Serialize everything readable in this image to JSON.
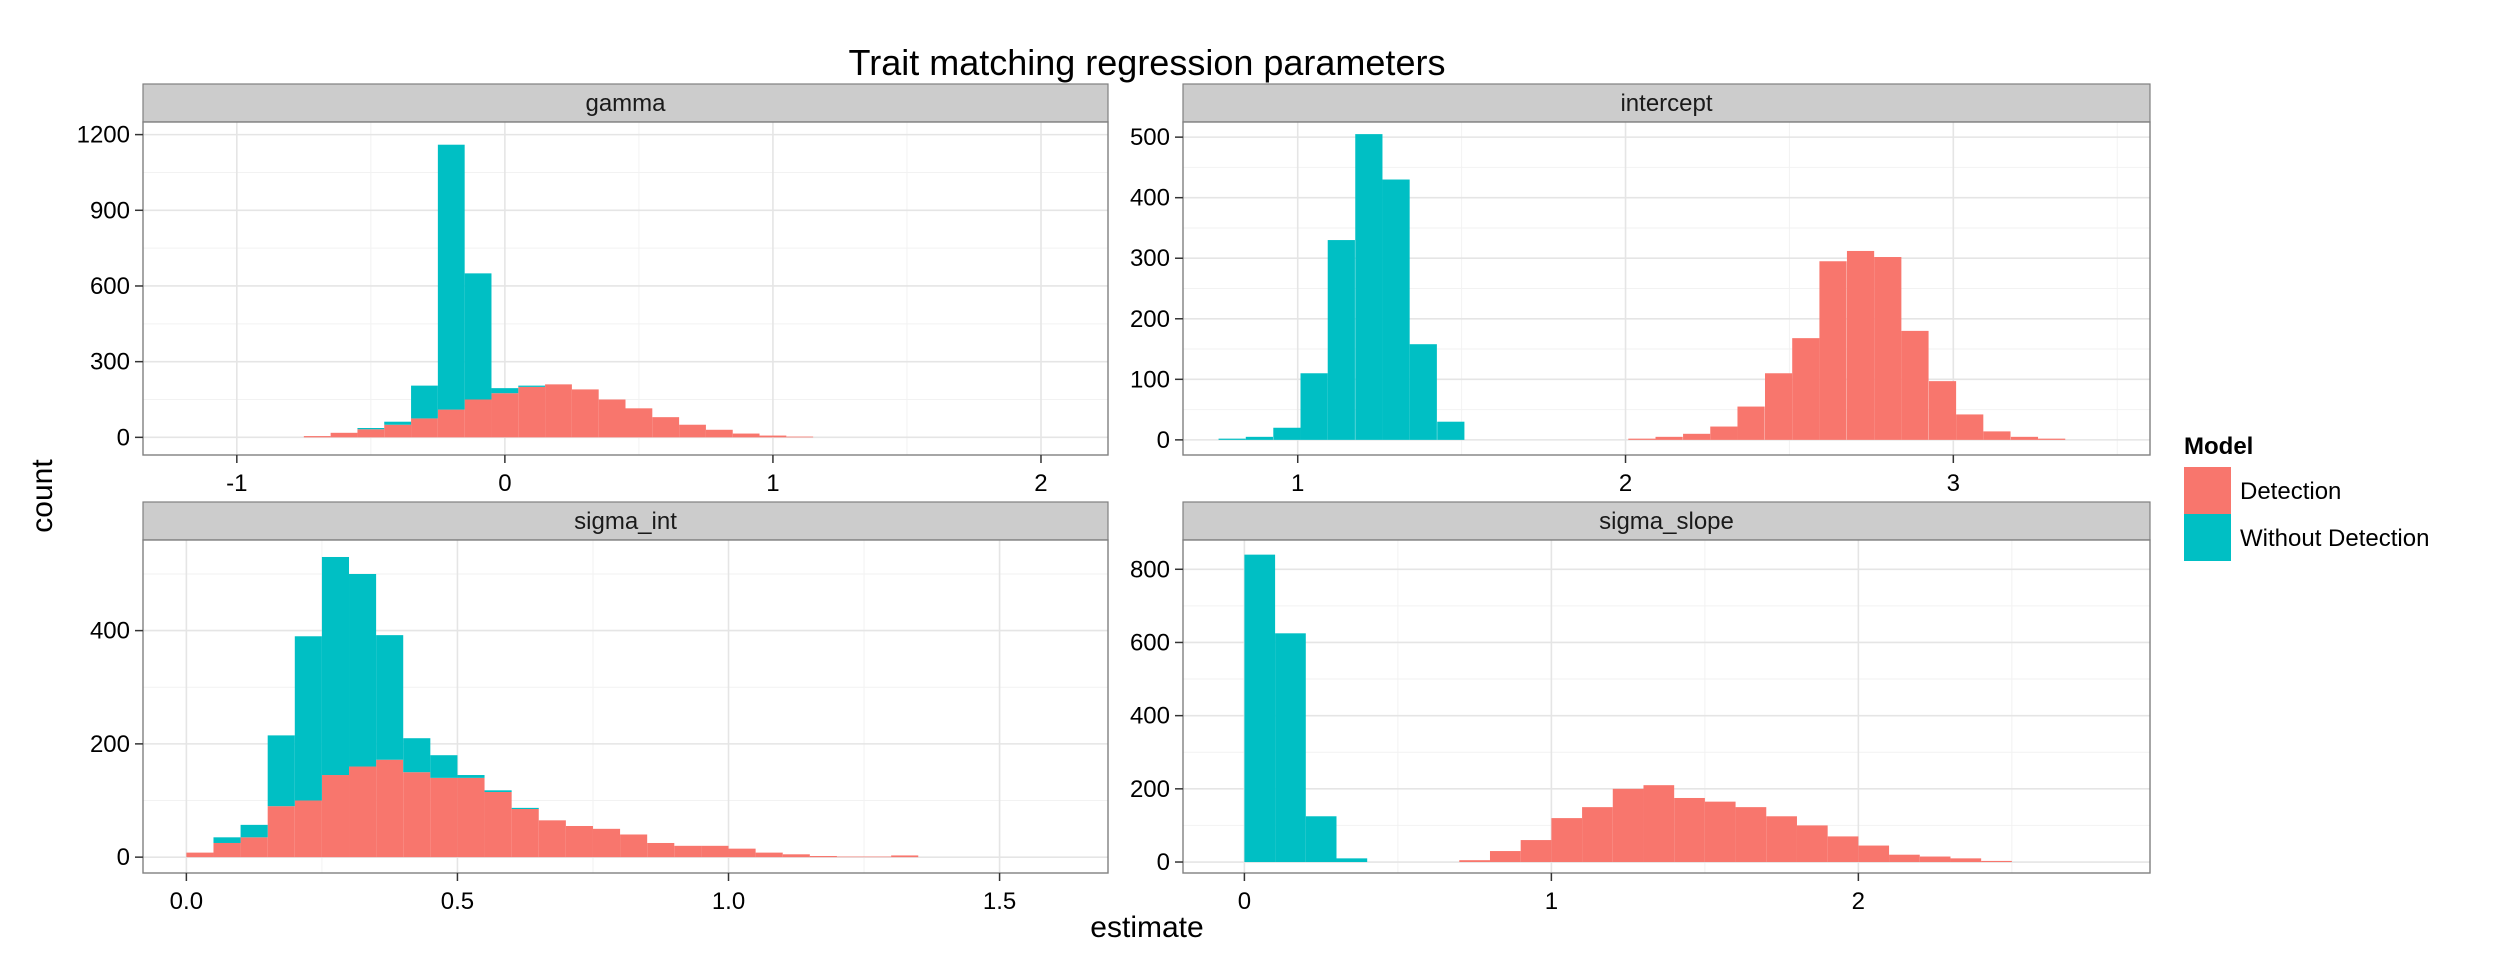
{
  "chart_data": {
    "type": "bar",
    "title": "Trait matching regression parameters",
    "xlabel": "estimate",
    "ylabel": "count",
    "legend": {
      "title": "Model",
      "position": "right",
      "entries": [
        {
          "name": "Detection",
          "color": "#F8766D"
        },
        {
          "name": "Without Detection",
          "color": "#00BFC4"
        }
      ]
    },
    "grid": true,
    "bar_stacking": "stacked",
    "panels": [
      {
        "name": "gamma",
        "xlim": [
          -1.35,
          2.25
        ],
        "ylim": [
          -70,
          1250
        ],
        "xticks": [
          -1,
          0,
          1,
          2
        ],
        "xtick_labels": [
          "-1",
          "0",
          "1",
          "2"
        ],
        "yticks": [
          0,
          300,
          600,
          900,
          1200
        ],
        "ytick_labels": [
          "0",
          "300",
          "600",
          "900",
          "1200"
        ],
        "binwidth": 0.1,
        "series": [
          {
            "name": "Detection",
            "color": "#F8766D",
            "x": [
              -0.7,
              -0.6,
              -0.5,
              -0.4,
              -0.3,
              -0.2,
              -0.1,
              0.0,
              0.1,
              0.2,
              0.3,
              0.4,
              0.5,
              0.6,
              0.7,
              0.8,
              0.9,
              1.0,
              1.1
            ],
            "values": [
              5,
              18,
              32,
              50,
              75,
              110,
              150,
              175,
              200,
              210,
              190,
              150,
              115,
              80,
              50,
              30,
              15,
              7,
              3
            ]
          },
          {
            "name": "Without Detection",
            "color": "#00BFC4",
            "x": [
              -0.5,
              -0.4,
              -0.3,
              -0.2,
              -0.1,
              0.0,
              0.1
            ],
            "values": [
              5,
              12,
              130,
              1050,
              500,
              20,
              5
            ]
          }
        ]
      },
      {
        "name": "intercept",
        "xlim": [
          0.65,
          3.6
        ],
        "ylim": [
          -25,
          525
        ],
        "xticks": [
          1,
          2,
          3
        ],
        "xtick_labels": [
          "1",
          "2",
          "3"
        ],
        "yticks": [
          0,
          100,
          200,
          300,
          400,
          500
        ],
        "ytick_labels": [
          "0",
          "100",
          "200",
          "300",
          "400",
          "500"
        ],
        "binwidth": 0.083,
        "series": [
          {
            "name": "Detection",
            "color": "#F8766D",
            "x": [
              2.05,
              2.133,
              2.217,
              2.3,
              2.383,
              2.467,
              2.55,
              2.633,
              2.717,
              2.8,
              2.883,
              2.967,
              3.05,
              3.133,
              3.217,
              3.3
            ],
            "values": [
              2,
              5,
              10,
              22,
              55,
              110,
              168,
              295,
              312,
              302,
              180,
              97,
              42,
              14,
              5,
              2
            ]
          },
          {
            "name": "Without Detection",
            "color": "#00BFC4",
            "x": [
              0.8,
              0.883,
              0.967,
              1.05,
              1.133,
              1.217,
              1.3,
              1.383,
              1.467
            ],
            "values": [
              2,
              5,
              20,
              110,
              330,
              505,
              430,
              158,
              30
            ]
          }
        ]
      },
      {
        "name": "sigma_int",
        "xlim": [
          -0.08,
          1.7
        ],
        "ylim": [
          -28,
          560
        ],
        "xticks": [
          0,
          0.5,
          1,
          1.5
        ],
        "xtick_labels": [
          "0.0",
          "0.5",
          "1.0",
          "1.5"
        ],
        "yticks": [
          0,
          200,
          400
        ],
        "ytick_labels": [
          "0",
          "200",
          "400"
        ],
        "binwidth": 0.05,
        "series": [
          {
            "name": "Detection",
            "color": "#F8766D",
            "x": [
              0.025,
              0.075,
              0.125,
              0.175,
              0.225,
              0.275,
              0.325,
              0.375,
              0.425,
              0.475,
              0.525,
              0.575,
              0.625,
              0.675,
              0.725,
              0.775,
              0.825,
              0.875,
              0.925,
              0.975,
              1.025,
              1.075,
              1.125,
              1.175,
              1.225,
              1.275,
              1.325
            ],
            "values": [
              8,
              25,
              35,
              90,
              100,
              145,
              160,
              172,
              150,
              140,
              140,
              115,
              85,
              65,
              55,
              50,
              40,
              25,
              20,
              20,
              15,
              8,
              5,
              2,
              1,
              1,
              3
            ]
          },
          {
            "name": "Without Detection",
            "color": "#00BFC4",
            "x": [
              0.075,
              0.125,
              0.175,
              0.225,
              0.275,
              0.325,
              0.375,
              0.425,
              0.475,
              0.525,
              0.575,
              0.625
            ],
            "values": [
              10,
              22,
              125,
              290,
              385,
              340,
              220,
              60,
              40,
              5,
              3,
              2
            ]
          }
        ]
      },
      {
        "name": "sigma_slope",
        "xlim": [
          -0.2,
          2.95
        ],
        "ylim": [
          -30,
          880
        ],
        "xticks": [
          0,
          1,
          2
        ],
        "xtick_labels": [
          "0",
          "1",
          "2"
        ],
        "yticks": [
          0,
          200,
          400,
          600,
          800
        ],
        "ytick_labels": [
          "0",
          "200",
          "400",
          "600",
          "800"
        ],
        "binwidth": 0.1,
        "series": [
          {
            "name": "Detection",
            "color": "#F8766D",
            "x": [
              0.75,
              0.85,
              0.95,
              1.05,
              1.15,
              1.25,
              1.35,
              1.45,
              1.55,
              1.65,
              1.75,
              1.85,
              1.95,
              2.05,
              2.15,
              2.25,
              2.35,
              2.45
            ],
            "values": [
              5,
              30,
              60,
              120,
              150,
              200,
              210,
              175,
              165,
              150,
              125,
              100,
              70,
              45,
              20,
              15,
              10,
              3
            ]
          },
          {
            "name": "Without Detection",
            "color": "#00BFC4",
            "x": [
              0.05,
              0.15,
              0.25,
              0.35
            ],
            "values": [
              840,
              625,
              125,
              10
            ]
          }
        ]
      }
    ]
  }
}
